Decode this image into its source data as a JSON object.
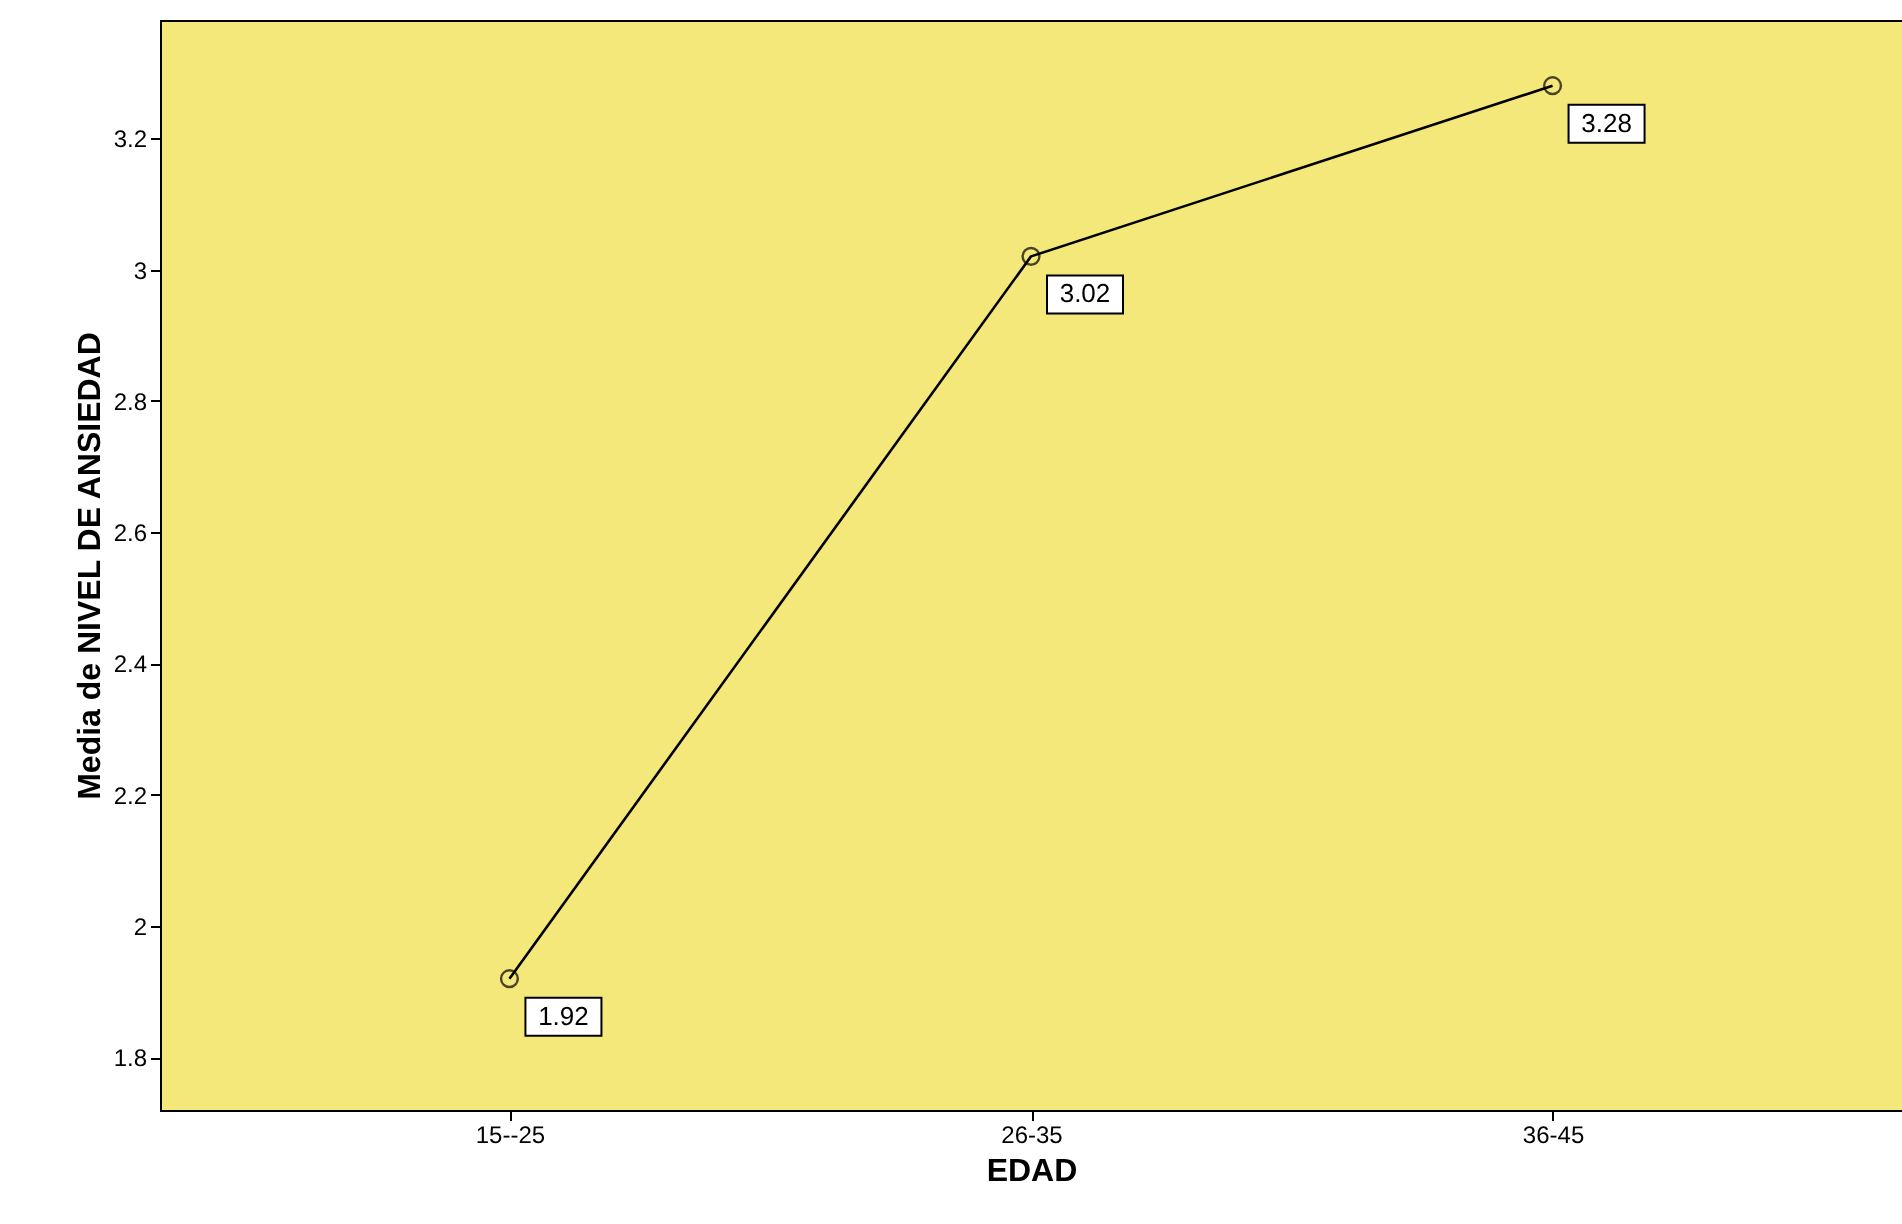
{
  "chart_data": {
    "type": "line",
    "xlabel": "EDAD",
    "ylabel": "Media de NIVEL DE ANSIEDAD",
    "categories": [
      "15--25",
      "26-35",
      "36-45"
    ],
    "series": [
      {
        "color": "#000000",
        "values": [
          1.92,
          3.02,
          3.28
        ]
      }
    ],
    "ylim": [
      1.72,
      3.38
    ],
    "yticks": [
      1.8,
      2,
      2.2,
      2.4,
      2.6,
      2.8,
      3,
      3.2
    ],
    "grid": false,
    "marker": "circle",
    "line_style": "solid",
    "data_labels": true
  }
}
